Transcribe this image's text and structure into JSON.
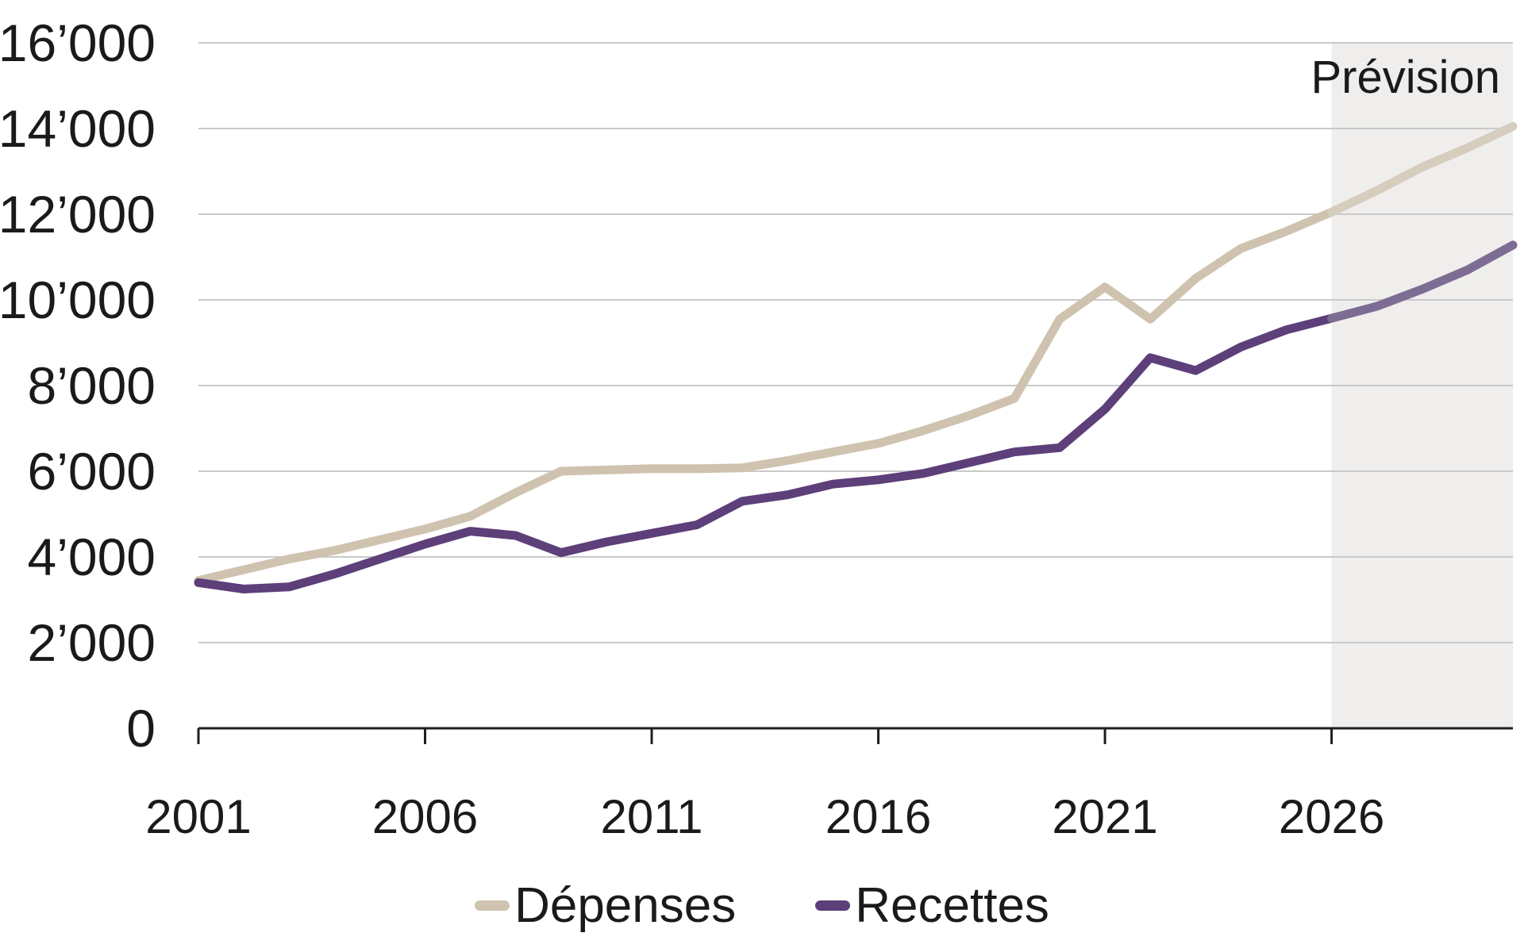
{
  "chart_data": {
    "type": "line",
    "title": "",
    "xlabel": "",
    "ylabel": "",
    "xlim": [
      2001,
      2030
    ],
    "ylim": [
      0,
      16000
    ],
    "grid": true,
    "legend_position": "bottom",
    "forecast_start": 2026,
    "forecast_label": "Prévision",
    "x": [
      2001,
      2002,
      2003,
      2004,
      2005,
      2006,
      2007,
      2008,
      2009,
      2010,
      2011,
      2012,
      2013,
      2014,
      2015,
      2016,
      2017,
      2018,
      2019,
      2020,
      2021,
      2022,
      2023,
      2024,
      2025,
      2026,
      2027,
      2028,
      2029,
      2030
    ],
    "series": [
      {
        "name": "Dépenses",
        "color": "#cfc3b0",
        "forecast_color": "#d6cdbf",
        "values": [
          3450,
          3700,
          3950,
          4150,
          4400,
          4650,
          4950,
          5500,
          6000,
          6030,
          6060,
          6060,
          6080,
          6250,
          6450,
          6650,
          6950,
          7300,
          7700,
          9550,
          10300,
          9550,
          10500,
          11200,
          11600,
          12050,
          12550,
          13100,
          13550,
          14050
        ]
      },
      {
        "name": "Recettes",
        "color": "#5d3f7a",
        "forecast_color": "#7d6c93",
        "values": [
          3400,
          3250,
          3300,
          3600,
          3950,
          4300,
          4600,
          4500,
          4100,
          4350,
          4550,
          4750,
          5300,
          5450,
          5700,
          5800,
          5950,
          6200,
          6450,
          6550,
          7450,
          8650,
          8350,
          8900,
          9300,
          9570,
          9850,
          10250,
          10700,
          11280
        ]
      }
    ],
    "x_ticks": [
      2001,
      2006,
      2011,
      2016,
      2021,
      2026
    ],
    "y_ticks": [
      {
        "value": 0,
        "label": "0"
      },
      {
        "value": 2000,
        "label": "2’000"
      },
      {
        "value": 4000,
        "label": "4’000"
      },
      {
        "value": 6000,
        "label": "6’000"
      },
      {
        "value": 8000,
        "label": "8’000"
      },
      {
        "value": 10000,
        "label": "10’000"
      },
      {
        "value": 12000,
        "label": "12’000"
      },
      {
        "value": 14000,
        "label": "14’000"
      },
      {
        "value": 16000,
        "label": "16’000"
      }
    ]
  },
  "colors": {
    "background": "#ffffff",
    "forecast_bg": "#efeeec",
    "gridline": "#c9c9c9",
    "axis": "#1f1f1f",
    "text": "#1a1a1a"
  }
}
